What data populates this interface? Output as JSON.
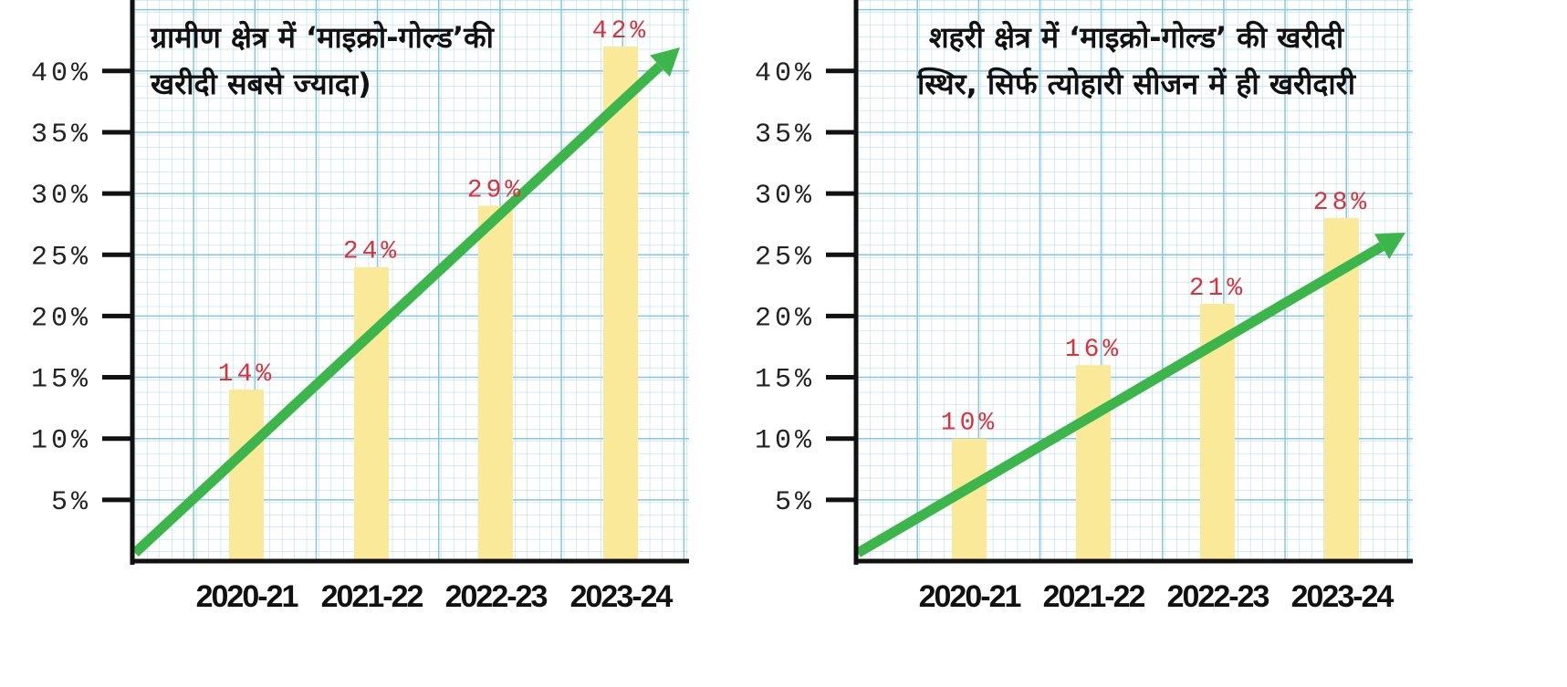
{
  "chart_data": [
    {
      "type": "bar",
      "title": "ग्रामीण क्षेत्र में ‘माइक्रो-गोल्ड’की खरीदी सबसे ज्यादा)",
      "title_lines": [
        "ग्रामीण क्षेत्र में ‘माइक्रो-गोल्ड’की",
        "खरीदी सबसे ज्यादा)"
      ],
      "categories": [
        "2020-21",
        "2021-22",
        "2022-23",
        "2023-24"
      ],
      "values": [
        14,
        24,
        29,
        42
      ],
      "data_labels": [
        "14%",
        "24%",
        "29%",
        "42%"
      ],
      "yticks": [
        "5%",
        "10%",
        "15%",
        "20%",
        "25%",
        "30%",
        "35%",
        "40%"
      ],
      "ylim": [
        0,
        45
      ],
      "grid": true,
      "trend_arrow": true
    },
    {
      "type": "bar",
      "title": "शहरी क्षेत्र में ‘माइक्रो-गोल्ड’ की खरीदी स्थिर, सिर्फ त्योहारी सीजन में ही खरीदारी",
      "title_lines": [
        "शहरी क्षेत्र में ‘माइक्रो-गोल्ड’ की खरीदी",
        "स्थिर, सिर्फ त्योहारी सीजन में ही खरीदारी"
      ],
      "categories": [
        "2020-21",
        "2021-22",
        "2022-23",
        "2023-24"
      ],
      "values": [
        10,
        16,
        21,
        28
      ],
      "data_labels": [
        "10%",
        "16%",
        "21%",
        "28%"
      ],
      "yticks": [
        "5%",
        "10%",
        "15%",
        "20%",
        "25%",
        "30%",
        "35%",
        "40%"
      ],
      "ylim": [
        0,
        45
      ],
      "grid": true,
      "trend_arrow": true
    }
  ],
  "colors": {
    "bar": "#fbe99a",
    "arrow": "#3cb54a",
    "data_label": "#d8323c",
    "grid": "#a9d8ea"
  }
}
